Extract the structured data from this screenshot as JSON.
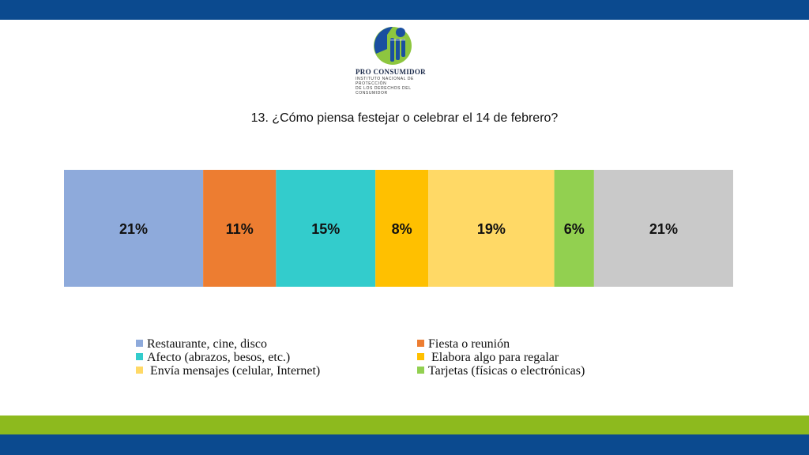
{
  "logo": {
    "name": "PRO CONSUMIDOR",
    "subtitle_line1": "INSTITUTO NACIONAL DE PROTECCIÓN",
    "subtitle_line2": "DE LOS DERECHOS DEL CONSUMIDOR"
  },
  "chart_data": {
    "type": "bar",
    "stacked": true,
    "orientation": "horizontal",
    "title": "13. ¿Cómo piensa festejar o celebrar el 14 de febrero?",
    "unit": "%",
    "series": [
      {
        "name": "Restaurante, cine, disco",
        "value": 21,
        "label": "21%",
        "color": "#8eaadb"
      },
      {
        "name": "Fiesta o reunión",
        "value": 11,
        "label": "11%",
        "color": "#ed7d31"
      },
      {
        "name": "Afecto (abrazos, besos, etc.)",
        "value": 15,
        "label": "15%",
        "color": "#33cccc"
      },
      {
        "name": " Elabora algo para regalar",
        "value": 8,
        "label": "8%",
        "color": "#ffc000"
      },
      {
        "name": " Envía mensajes (celular, Internet)",
        "value": 19,
        "label": "19%",
        "color": "#ffd966"
      },
      {
        "name": "Tarjetas (físicas o electrónicas)",
        "value": 6,
        "label": "6%",
        "color": "#92d050"
      },
      {
        "name": "",
        "value": 21,
        "label": "21%",
        "color": "#c9c9c9"
      }
    ],
    "legend_position": "bottom",
    "grid": false
  }
}
